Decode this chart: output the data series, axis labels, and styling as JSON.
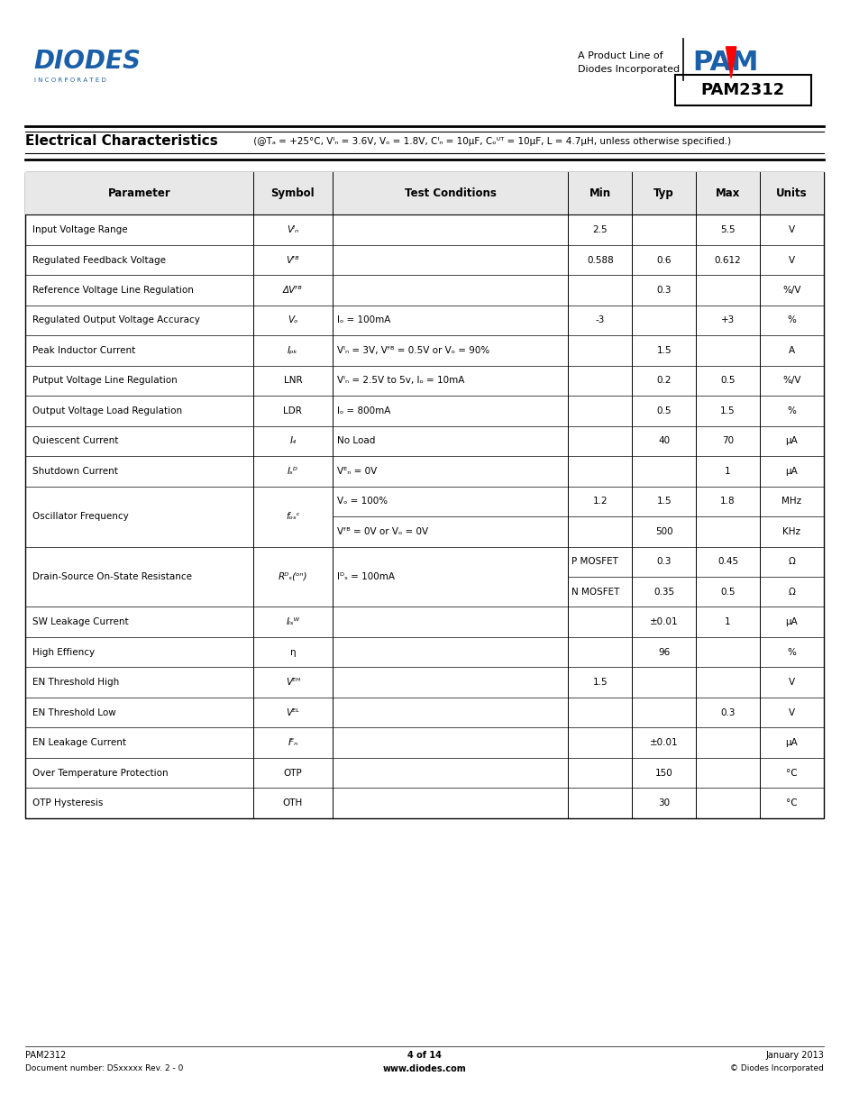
{
  "page_bg": "#ffffff",
  "footer_left_line1": "PAM2312",
  "footer_left_line2": "Document number: DSxxxxx Rev. 2 - 0",
  "footer_center_line1": "4 of 14",
  "footer_center_line2": "www.diodes.com",
  "footer_right_line1": "January 2013",
  "footer_right_line2": "© Diodes Incorporated"
}
